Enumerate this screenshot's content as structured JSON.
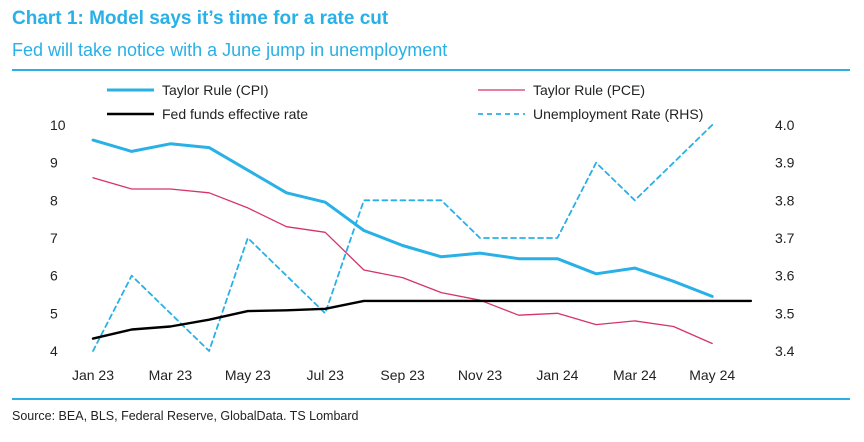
{
  "header": {
    "title": "Chart 1: Model says it’s time for a rate cut",
    "subtitle": "Fed will take notice with a June jump in unemployment"
  },
  "footer": {
    "source": "Source: BEA, BLS, Federal Reserve, GlobalData. TS Lombard"
  },
  "colors": {
    "accent": "#29b0e6",
    "cpi": "#29b0e6",
    "pce": "#d6336c",
    "ffr": "#000000",
    "unemployment": "#29b0e6"
  },
  "chart_data": {
    "type": "line",
    "title": "Chart 1: Model says it’s time for a rate cut",
    "subtitle": "Fed will take notice with a June jump in unemployment",
    "x": [
      "Jan 23",
      "Feb 23",
      "Mar 23",
      "Apr 23",
      "May 23",
      "Jun 23",
      "Jul 23",
      "Aug 23",
      "Sep 23",
      "Oct 23",
      "Nov 23",
      "Dec 23",
      "Jan 24",
      "Feb 24",
      "Mar 24",
      "Apr 24",
      "May 24",
      "Jun 24"
    ],
    "x_tick_labels": [
      "Jan 23",
      "Mar 23",
      "May 23",
      "Jul 23",
      "Sep 23",
      "Nov 23",
      "Jan 24",
      "Mar 24",
      "May 24"
    ],
    "left_axis": {
      "ylim": [
        4,
        10
      ],
      "ticks": [
        "4",
        "5",
        "6",
        "7",
        "8",
        "9",
        "10"
      ]
    },
    "right_axis": {
      "ylim": [
        3.4,
        4.0
      ],
      "ticks": [
        "3.4",
        "3.5",
        "3.6",
        "3.7",
        "3.8",
        "3.9",
        "4.0"
      ]
    },
    "legend_position": "top",
    "grid": false,
    "series": [
      {
        "name": "Taylor Rule (CPI)",
        "axis": "left",
        "style": "solid-thick",
        "values": [
          9.6,
          9.3,
          9.5,
          9.4,
          8.8,
          8.2,
          7.95,
          7.2,
          6.8,
          6.5,
          6.6,
          6.45,
          6.45,
          6.05,
          6.2,
          5.85,
          5.45,
          null
        ]
      },
      {
        "name": "Taylor Rule (PCE)",
        "axis": "left",
        "style": "solid-thin",
        "values": [
          8.6,
          8.3,
          8.3,
          8.2,
          7.8,
          7.3,
          7.15,
          6.15,
          5.95,
          5.55,
          5.35,
          4.95,
          5.0,
          4.7,
          4.8,
          4.65,
          4.2,
          null
        ]
      },
      {
        "name": "Fed funds effective rate",
        "axis": "left",
        "style": "solid-black",
        "values": [
          4.33,
          4.57,
          4.65,
          4.83,
          5.06,
          5.08,
          5.12,
          5.33,
          5.33,
          5.33,
          5.33,
          5.33,
          5.33,
          5.33,
          5.33,
          5.33,
          5.33,
          5.33
        ]
      },
      {
        "name": "Unemployment Rate (RHS)",
        "axis": "right",
        "style": "dashed",
        "values": [
          3.4,
          3.6,
          3.5,
          3.4,
          3.7,
          3.6,
          3.5,
          3.8,
          3.8,
          3.8,
          3.7,
          3.7,
          3.7,
          3.9,
          3.8,
          3.9,
          4.0,
          null
        ]
      }
    ]
  }
}
